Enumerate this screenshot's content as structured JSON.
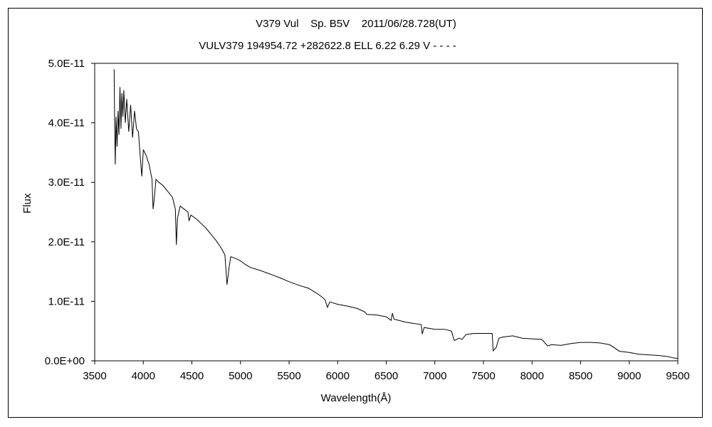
{
  "chart_data": {
    "type": "line",
    "title": "V379 Vul    Sp. B5V    2011/06/28.728(UT)",
    "subtitle": "VULV379 194954.72 +282622.8 ELL 6.22 6.29 V - - - -",
    "xlabel": "Wavelength(Å)",
    "ylabel": "Flux",
    "xlim": [
      3500,
      9500
    ],
    "ylim": [
      0,
      5e-11
    ],
    "x_ticks": [
      3500,
      4000,
      4500,
      5000,
      5500,
      6000,
      6500,
      7000,
      7500,
      8000,
      8500,
      9000,
      9500
    ],
    "x_tick_labels": [
      "3500",
      "4000",
      "4500",
      "5000",
      "5500",
      "6000",
      "6500",
      "7000",
      "7500",
      "8000",
      "8500",
      "9000",
      "9500"
    ],
    "y_ticks": [
      0,
      1e-11,
      2e-11,
      3e-11,
      4e-11,
      5e-11
    ],
    "y_tick_labels": [
      "0.0E+00",
      "1.0E-11",
      "2.0E-11",
      "3.0E-11",
      "4.0E-11",
      "5.0E-11"
    ],
    "grid": false,
    "legend": "none",
    "series": [
      {
        "color": "#000000",
        "points": [
          [
            3700,
            4.9e-11
          ],
          [
            3705,
            4e-11
          ],
          [
            3712,
            3.3e-11
          ],
          [
            3720,
            4.1e-11
          ],
          [
            3730,
            3.6e-11
          ],
          [
            3740,
            4.2e-11
          ],
          [
            3750,
            3.8e-11
          ],
          [
            3760,
            4.6e-11
          ],
          [
            3770,
            3.9e-11
          ],
          [
            3780,
            4.5e-11
          ],
          [
            3790,
            4.1e-11
          ],
          [
            3800,
            4.55e-11
          ],
          [
            3815,
            4e-11
          ],
          [
            3830,
            4.4e-11
          ],
          [
            3850,
            3.85e-11
          ],
          [
            3870,
            4.3e-11
          ],
          [
            3890,
            3.75e-11
          ],
          [
            3910,
            4.2e-11
          ],
          [
            3930,
            3.9e-11
          ],
          [
            3950,
            3.85e-11
          ],
          [
            3970,
            3.4e-11
          ],
          [
            3985,
            3.1e-11
          ],
          [
            4000,
            3.55e-11
          ],
          [
            4030,
            3.45e-11
          ],
          [
            4060,
            3.3e-11
          ],
          [
            4090,
            3.05e-11
          ],
          [
            4101,
            2.55e-11
          ],
          [
            4115,
            2.75e-11
          ],
          [
            4130,
            3.05e-11
          ],
          [
            4160,
            3e-11
          ],
          [
            4200,
            2.95e-11
          ],
          [
            4250,
            2.85e-11
          ],
          [
            4300,
            2.75e-11
          ],
          [
            4330,
            2.55e-11
          ],
          [
            4340,
            1.95e-11
          ],
          [
            4352,
            2.4e-11
          ],
          [
            4380,
            2.6e-11
          ],
          [
            4420,
            2.55e-11
          ],
          [
            4460,
            2.5e-11
          ],
          [
            4471,
            2.35e-11
          ],
          [
            4490,
            2.45e-11
          ],
          [
            4550,
            2.38e-11
          ],
          [
            4600,
            2.3e-11
          ],
          [
            4650,
            2.22e-11
          ],
          [
            4700,
            2.12e-11
          ],
          [
            4750,
            2.02e-11
          ],
          [
            4800,
            1.9e-11
          ],
          [
            4840,
            1.78e-11
          ],
          [
            4861,
            1.28e-11
          ],
          [
            4885,
            1.6e-11
          ],
          [
            4900,
            1.75e-11
          ],
          [
            4950,
            1.72e-11
          ],
          [
            5000,
            1.68e-11
          ],
          [
            5050,
            1.62e-11
          ],
          [
            5100,
            1.57e-11
          ],
          [
            5200,
            1.52e-11
          ],
          [
            5300,
            1.46e-11
          ],
          [
            5400,
            1.4e-11
          ],
          [
            5500,
            1.33e-11
          ],
          [
            5600,
            1.27e-11
          ],
          [
            5700,
            1.22e-11
          ],
          [
            5800,
            1.12e-11
          ],
          [
            5870,
            1.03e-11
          ],
          [
            5895,
            9e-12
          ],
          [
            5920,
            9.9e-12
          ],
          [
            6000,
            9.5e-12
          ],
          [
            6100,
            9.2e-12
          ],
          [
            6200,
            8.8e-12
          ],
          [
            6280,
            8.2e-12
          ],
          [
            6300,
            7.8e-12
          ],
          [
            6400,
            7.7e-12
          ],
          [
            6500,
            7.4e-12
          ],
          [
            6550,
            6.8e-12
          ],
          [
            6563,
            8e-12
          ],
          [
            6580,
            7e-12
          ],
          [
            6700,
            6.5e-12
          ],
          [
            6860,
            6.1e-12
          ],
          [
            6870,
            4.5e-12
          ],
          [
            6890,
            5.6e-12
          ],
          [
            7000,
            5.3e-12
          ],
          [
            7100,
            5.3e-12
          ],
          [
            7170,
            5e-12
          ],
          [
            7200,
            3.4e-12
          ],
          [
            7250,
            3.8e-12
          ],
          [
            7280,
            3.6e-12
          ],
          [
            7320,
            4.4e-12
          ],
          [
            7400,
            4.6e-12
          ],
          [
            7500,
            4.6e-12
          ],
          [
            7590,
            4.6e-12
          ],
          [
            7600,
            1.7e-12
          ],
          [
            7630,
            2.2e-12
          ],
          [
            7660,
            3.8e-12
          ],
          [
            7700,
            4e-12
          ],
          [
            7800,
            4.2e-12
          ],
          [
            7900,
            3.8e-12
          ],
          [
            8000,
            3.7e-12
          ],
          [
            8100,
            3.6e-12
          ],
          [
            8160,
            2.5e-12
          ],
          [
            8200,
            2.7e-12
          ],
          [
            8300,
            2.6e-12
          ],
          [
            8400,
            2.9e-12
          ],
          [
            8500,
            3.1e-12
          ],
          [
            8600,
            3.1e-12
          ],
          [
            8700,
            3e-12
          ],
          [
            8800,
            2.7e-12
          ],
          [
            8900,
            1.6e-12
          ],
          [
            9000,
            1.4e-12
          ],
          [
            9100,
            1.1e-12
          ],
          [
            9200,
            1e-12
          ],
          [
            9300,
            9e-13
          ],
          [
            9400,
            7e-13
          ],
          [
            9450,
            5e-13
          ],
          [
            9500,
            4e-13
          ]
        ]
      }
    ]
  }
}
